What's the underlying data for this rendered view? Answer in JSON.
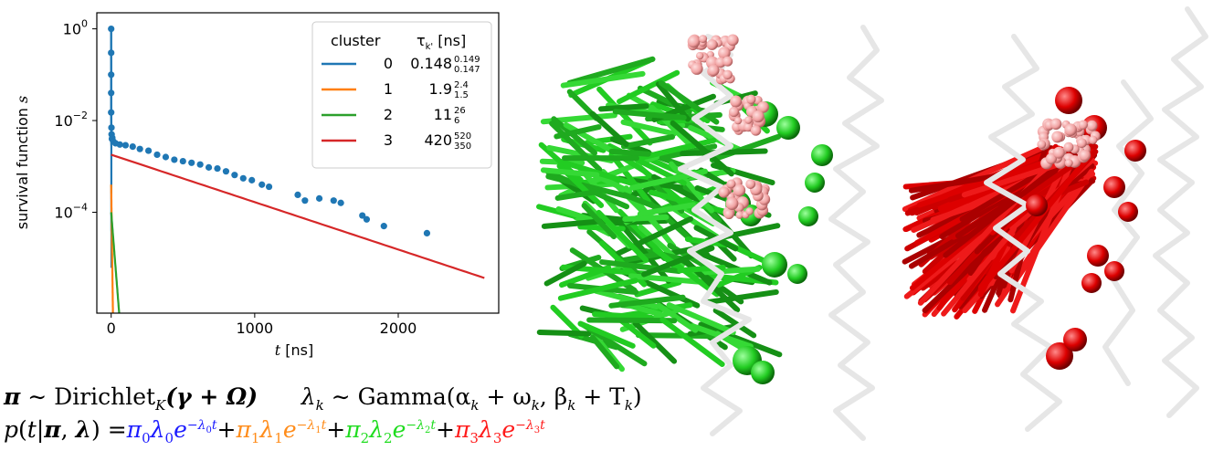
{
  "chart_data": {
    "type": "scatter",
    "xlabel": "t [ns]",
    "ylabel": "survival function s",
    "xlim": [
      -100,
      2700
    ],
    "ylim_log10": [
      -6.2,
      0.35
    ],
    "y_scale": "log",
    "xticks": [
      0,
      1000,
      2000
    ],
    "yticks": [
      {
        "base": "10",
        "exp": "0",
        "value": 1
      },
      {
        "base": "10",
        "exp": "−2",
        "value": 0.01
      },
      {
        "base": "10",
        "exp": "−4",
        "value": 0.0001
      }
    ],
    "legend": {
      "position": "top-right",
      "header_cluster": "cluster",
      "header_tau": "τ",
      "header_tau_sub": "k'",
      "header_tau_unit": " [ns]",
      "entries": [
        {
          "label": "0",
          "value": "0.148",
          "sup": "0.149",
          "sub": "0.147",
          "color": "#1f77b4"
        },
        {
          "label": "1",
          "value": "1.9",
          "sup": "2.4",
          "sub": "1.5",
          "color": "#ff7f0e"
        },
        {
          "label": "2",
          "value": "11",
          "sup": "26",
          "sub": "6",
          "color": "#2ca02c"
        },
        {
          "label": "3",
          "value": "420",
          "sup": "520",
          "sub": "350",
          "color": "#d62728"
        }
      ]
    },
    "points": {
      "color": "#1f77b4",
      "x": [
        0,
        0,
        0,
        0,
        0,
        2,
        3,
        5,
        8,
        15,
        30,
        60,
        100,
        150,
        200,
        260,
        320,
        380,
        440,
        500,
        560,
        620,
        680,
        740,
        800,
        860,
        920,
        980,
        1050,
        1100,
        1300,
        1350,
        1450,
        1550,
        1600,
        1750,
        1780,
        1900,
        2200
      ],
      "y": [
        1,
        0.3,
        0.1,
        0.04,
        0.015,
        0.007,
        0.005,
        0.004,
        0.0042,
        0.0035,
        0.0032,
        0.003,
        0.0029,
        0.0027,
        0.0024,
        0.0022,
        0.0018,
        0.0016,
        0.0014,
        0.0013,
        0.0012,
        0.0011,
        0.00095,
        0.0009,
        0.00078,
        0.00065,
        0.00055,
        0.0005,
        0.0004,
        0.00036,
        0.00024,
        0.00018,
        0.0002,
        0.00018,
        0.00016,
        8.5e-05,
        7e-05,
        5e-05,
        3.5e-05
      ]
    },
    "fits": [
      {
        "name": "0",
        "color": "#1f77b4",
        "a": 0.9977,
        "tau": 0.148
      },
      {
        "name": "1",
        "color": "#ff7f0e",
        "a": 0.0004,
        "tau": 1.9
      },
      {
        "name": "2",
        "color": "#2ca02c",
        "a": 0.0001,
        "tau": 11
      },
      {
        "name": "3",
        "color": "#d62728",
        "a": 0.0018,
        "tau": 420
      }
    ]
  },
  "equations": {
    "line1_prior_pi": "Dirichlet",
    "line1_sub_K": "K",
    "line1_args": "(γ + Ω)",
    "line1_lambda_prior": "Gamma",
    "line1_gamma_args": "(α",
    "line1_gamma_args2": " + ω",
    "line1_gamma_args3": ", β",
    "line1_gamma_args4": " + T",
    "line1_gamma_close": ")",
    "line2_lhs": "p(t|π, λ) =",
    "terms": [
      {
        "index": "0",
        "color": "#1a1aff"
      },
      {
        "index": "1",
        "color": "#ff8c1a"
      },
      {
        "index": "2",
        "color": "#1fdc1f"
      },
      {
        "index": "3",
        "color": "#ff1a1a"
      }
    ]
  },
  "images": {
    "colors": {
      "green": "#22cc22",
      "red": "#dd0000",
      "pink": "#f0a0a0",
      "backbone": "#e8e8e8"
    }
  }
}
